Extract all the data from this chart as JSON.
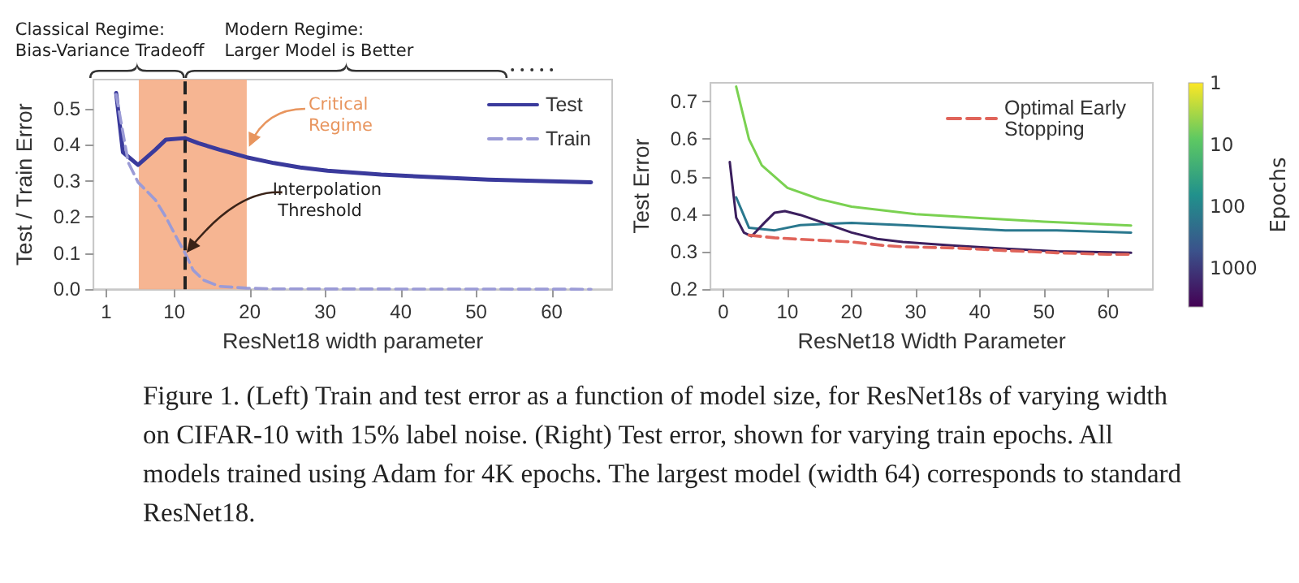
{
  "chart_data": [
    {
      "type": "line",
      "xlabel": "ResNet18 width parameter",
      "ylabel": "Test / Train Error",
      "xlim": [
        -0.7,
        68
      ],
      "xticks": [
        1,
        10,
        20,
        30,
        40,
        50,
        60
      ],
      "ylim": [
        0,
        0.58
      ],
      "yticks": [
        {
          "value": 0,
          "label": "0.0"
        },
        0.1,
        0.2,
        0.3,
        0.4,
        0.5
      ],
      "legend": "top right",
      "marker": "none",
      "series": [
        {
          "name": "Test",
          "color": "#3a3a9c",
          "x": [
            2.3,
            3.2,
            5.2,
            7.5,
            8.9,
            11.4,
            13.2,
            16.0,
            19.6,
            23.2,
            26.7,
            30.3,
            37.4,
            44.5,
            51.6,
            58.8,
            65.2
          ],
          "values": [
            0.543,
            0.379,
            0.344,
            0.386,
            0.414,
            0.418,
            0.404,
            0.386,
            0.365,
            0.349,
            0.337,
            0.328,
            0.317,
            0.31,
            0.303,
            0.299,
            0.296
          ]
        },
        {
          "name": "Train",
          "color": "#9b9bd6",
          "line_style": "dashed",
          "x": [
            2.3,
            3.9,
            5.2,
            7.5,
            8.9,
            10.3,
            11.4,
            12.5,
            13.9,
            16.0,
            19.6,
            23.2,
            65.2
          ],
          "values": [
            0.539,
            0.351,
            0.296,
            0.247,
            0.199,
            0.143,
            0.101,
            0.053,
            0.025,
            0.008,
            0.003,
            0.001,
            0
          ]
        }
      ],
      "bands": [
        {
          "axis": "x",
          "from": 5.3,
          "to": 19.6,
          "label": "Critical Regime",
          "color": "#f5ad86"
        }
      ],
      "ref_lines": [
        {
          "axis": "x",
          "value": 11.4,
          "label": "Interpolation Threshold",
          "color": "#222222",
          "line_style": "dashed"
        }
      ],
      "annotations": [
        "Classical Regime: Bias-Variance Tradeoff",
        "Modern Regime: Larger Model is Better",
        "Figure 1. (Left) Train and test error as a function of model size, for ResNet18s of varying width on CIFAR-10 with 15% label noise. (Right) Test error, shown for varying train epochs. All models trained using Adam for 4K epochs. The largest model (width 64) corresponds to standard ResNet18."
      ]
    },
    {
      "type": "line",
      "xlabel": "ResNet18 Width Parameter",
      "ylabel": "Test Error",
      "xlim": [
        -2,
        67
      ],
      "xticks": [
        0,
        10,
        20,
        30,
        40,
        50,
        60
      ],
      "ylim": [
        0.2,
        0.75
      ],
      "yticks": [
        0.2,
        0.3,
        0.4,
        0.5,
        0.6,
        0.7
      ],
      "legend": "top right",
      "marker": "none",
      "clabel": "Epochs",
      "annotations": [
        "1",
        "10",
        "100",
        "1000"
      ],
      "series": [
        {
          "color": "#7ad151",
          "x": [
            2,
            4,
            6,
            10,
            15,
            20,
            30,
            40,
            50,
            63.6
          ],
          "values": [
            0.74,
            0.6,
            0.53,
            0.47,
            0.44,
            0.42,
            0.4,
            0.39,
            0.38,
            0.37
          ]
        },
        {
          "color": "#2a788e",
          "x": [
            2,
            4,
            8,
            12,
            20,
            28,
            36,
            44,
            52,
            63.6
          ],
          "values": [
            0.445,
            0.364,
            0.357,
            0.371,
            0.377,
            0.371,
            0.364,
            0.357,
            0.357,
            0.351
          ]
        },
        {
          "color": "#3b1f5e",
          "x": [
            1,
            2,
            3.2,
            4.4,
            6.4,
            8,
            9.6,
            12,
            16,
            20,
            24,
            28,
            36,
            44,
            52,
            63.6
          ],
          "values": [
            0.539,
            0.391,
            0.351,
            0.341,
            0.377,
            0.404,
            0.408,
            0.398,
            0.375,
            0.351,
            0.334,
            0.326,
            0.316,
            0.308,
            0.301,
            0.297
          ]
        },
        {
          "name": "Optimal Early Stopping",
          "color": "#e0645a",
          "line_style": "dashed",
          "x": [
            4,
            8,
            12,
            20,
            24.8,
            28,
            36,
            44,
            52,
            60,
            63.6
          ],
          "values": [
            0.344,
            0.337,
            0.333,
            0.326,
            0.317,
            0.313,
            0.31,
            0.303,
            0.297,
            0.293,
            0.293
          ]
        }
      ]
    }
  ]
}
